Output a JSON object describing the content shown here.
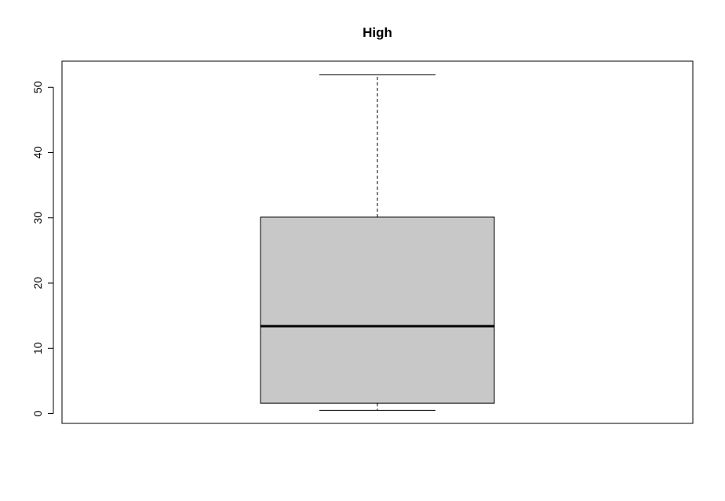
{
  "chart_data": {
    "type": "boxplot",
    "title": "High",
    "xlabel": "",
    "ylabel": "",
    "ylim": [
      -1.5,
      54
    ],
    "y_ticks": [
      0,
      10,
      20,
      30,
      40,
      50
    ],
    "y_tick_labels": [
      "0",
      "10",
      "20",
      "30",
      "40",
      "50"
    ],
    "box": {
      "min": 0.5,
      "q1": 1.6,
      "median": 13.4,
      "q3": 30.1,
      "max": 51.9
    },
    "box_fill": "#c8c8c8",
    "line_color": "#000000",
    "grid": false,
    "legend": "none"
  }
}
